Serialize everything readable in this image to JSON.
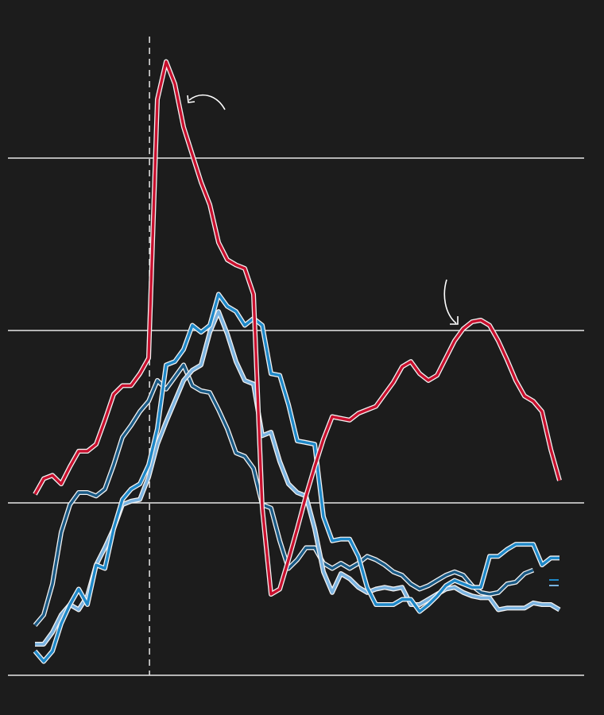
{
  "chart_data": {
    "type": "line",
    "x": [
      0,
      1,
      2,
      3,
      4,
      5,
      6,
      7,
      8,
      9,
      10,
      11,
      12,
      13,
      14,
      15,
      16,
      17,
      18,
      19,
      20,
      21,
      22,
      23,
      24,
      25,
      26,
      27,
      28,
      29,
      30,
      31,
      32,
      33,
      34,
      35,
      36,
      37,
      38,
      39,
      40,
      41,
      42,
      43,
      44,
      45,
      46,
      47,
      48,
      49,
      50,
      51,
      52,
      53,
      54,
      55,
      56,
      57,
      58,
      59,
      60
    ],
    "xlim": [
      0,
      60
    ],
    "ylim": [
      0,
      3.6
    ],
    "yticks": [
      0,
      1,
      2,
      3
    ],
    "grid": true,
    "reference_line": {
      "x": 13.1,
      "style": "dashed"
    },
    "series": [
      {
        "color": "#1a5a85",
        "values": [
          0.29,
          0.35,
          0.53,
          0.83,
          0.99,
          1.06,
          1.06,
          1.04,
          1.08,
          1.22,
          1.38,
          1.45,
          1.53,
          1.59,
          1.71,
          1.66,
          1.73,
          1.8,
          1.68,
          1.65,
          1.64,
          1.54,
          1.43,
          1.29,
          1.27,
          1.2,
          0.99,
          0.97,
          0.78,
          0.62,
          0.67,
          0.74,
          0.74,
          0.65,
          0.62,
          0.65,
          0.62,
          0.65,
          0.69,
          0.67,
          0.64,
          0.6,
          0.58,
          0.53,
          0.5,
          0.52,
          0.55,
          0.58,
          0.6,
          0.58,
          0.52,
          0.48,
          0.47,
          0.48,
          0.53,
          0.54,
          0.59,
          0.61,
          null,
          null,
          null
        ]
      },
      {
        "color": "#7ab3e0",
        "values": [
          0.18,
          0.18,
          0.25,
          0.35,
          0.41,
          0.38,
          0.46,
          0.64,
          0.74,
          0.85,
          0.99,
          1.01,
          1.02,
          1.15,
          1.34,
          1.47,
          1.59,
          1.71,
          1.77,
          1.8,
          1.99,
          2.11,
          1.98,
          1.82,
          1.71,
          1.69,
          1.39,
          1.41,
          1.24,
          1.11,
          1.06,
          1.04,
          0.85,
          0.6,
          0.48,
          0.59,
          0.56,
          0.51,
          0.48,
          0.5,
          0.51,
          0.5,
          0.51,
          0.41,
          0.41,
          0.44,
          0.47,
          0.5,
          0.51,
          0.48,
          0.46,
          0.45,
          0.45,
          0.38,
          0.39,
          0.39,
          0.39,
          0.42,
          0.41,
          0.41,
          0.38
        ]
      },
      {
        "color": "#1e88c8",
        "values": [
          0.14,
          0.08,
          0.14,
          0.3,
          0.41,
          0.5,
          0.41,
          0.64,
          0.62,
          0.85,
          1.02,
          1.08,
          1.11,
          1.22,
          1.43,
          1.8,
          1.82,
          1.89,
          2.03,
          1.99,
          2.03,
          2.21,
          2.14,
          2.11,
          2.03,
          2.07,
          2.03,
          1.75,
          1.74,
          1.57,
          1.36,
          1.35,
          1.34,
          0.92,
          0.78,
          0.79,
          0.79,
          0.69,
          0.51,
          0.41,
          0.41,
          0.41,
          0.44,
          0.44,
          0.37,
          0.41,
          0.46,
          0.52,
          0.55,
          0.53,
          0.51,
          0.51,
          0.69,
          0.69,
          0.73,
          0.76,
          0.76,
          0.76,
          0.64,
          0.68,
          0.68
        ]
      },
      {
        "color": "#c8102e",
        "values": [
          1.05,
          1.14,
          1.16,
          1.11,
          1.21,
          1.3,
          1.3,
          1.34,
          1.48,
          1.63,
          1.68,
          1.68,
          1.75,
          1.84,
          3.34,
          3.56,
          3.43,
          3.18,
          3.02,
          2.86,
          2.73,
          2.51,
          2.41,
          2.38,
          2.36,
          2.21,
          0.97,
          0.47,
          0.5,
          0.67,
          0.85,
          1.04,
          1.21,
          1.37,
          1.5,
          1.49,
          1.48,
          1.52,
          1.54,
          1.56,
          1.63,
          1.7,
          1.79,
          1.82,
          1.75,
          1.71,
          1.74,
          1.84,
          1.94,
          2.01,
          2.05,
          2.06,
          2.03,
          1.94,
          1.83,
          1.71,
          1.62,
          1.59,
          1.53,
          1.31,
          1.13
        ]
      }
    ]
  }
}
